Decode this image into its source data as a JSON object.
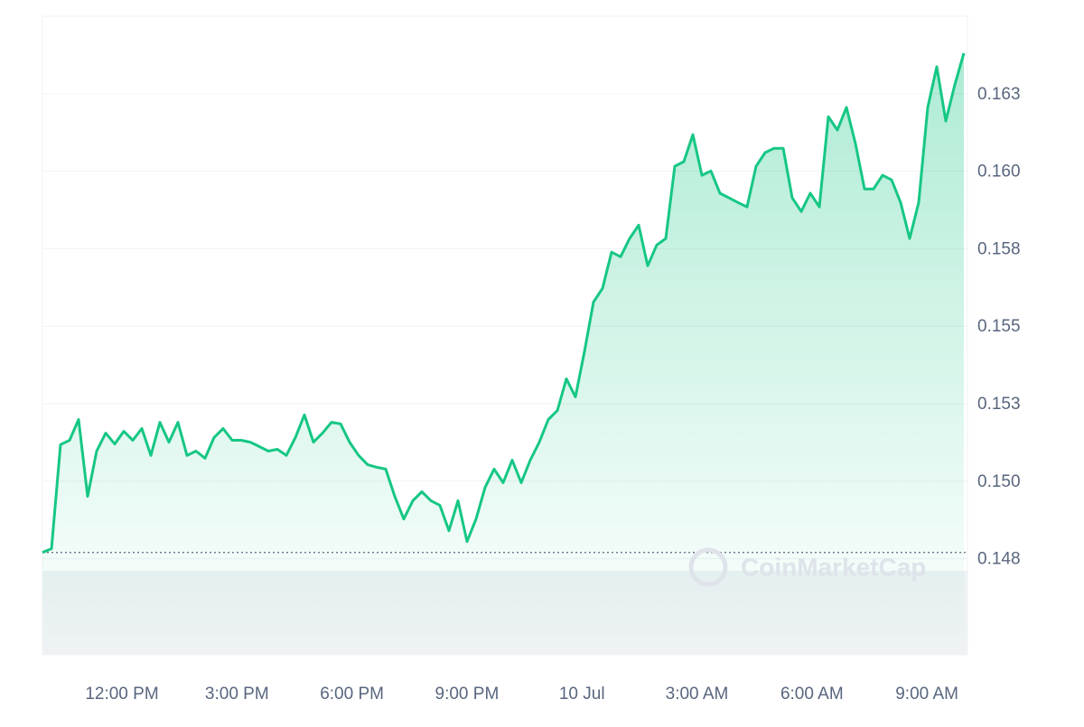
{
  "chart_data": {
    "type": "area",
    "watermark": "CoinMarketCap",
    "color": "#16c784",
    "values": [
      0.1477,
      0.14782,
      0.15118,
      0.15132,
      0.15199,
      0.14951,
      0.15097,
      0.15155,
      0.1512,
      0.15161,
      0.15132,
      0.1517,
      0.15083,
      0.1519,
      0.15126,
      0.1519,
      0.15083,
      0.15097,
      0.15074,
      0.15141,
      0.1517,
      0.15132,
      0.15132,
      0.15126,
      0.15112,
      0.15097,
      0.15103,
      0.15083,
      0.15141,
      0.15214,
      0.15126,
      0.15155,
      0.1519,
      0.15185,
      0.15126,
      0.15083,
      0.15053,
      0.15045,
      0.15039,
      0.14951,
      0.14878,
      0.14937,
      0.14966,
      0.14937,
      0.14922,
      0.1484,
      0.14937,
      0.14805,
      0.14878,
      0.1498,
      0.15039,
      0.14995,
      0.15068,
      0.14995,
      0.15068,
      0.15126,
      0.15199,
      0.15228,
      0.1533,
      0.15272,
      0.15418,
      0.15578,
      0.15622,
      0.15739,
      0.15724,
      0.15783,
      0.15826,
      0.15695,
      0.15762,
      0.15783,
      0.16016,
      0.16031,
      0.16118,
      0.15987,
      0.16001,
      0.15929,
      0.15914,
      0.15899,
      0.15885,
      0.16016,
      0.1606,
      0.16074,
      0.16074,
      0.15914,
      0.1587,
      0.15929,
      0.15885,
      0.16176,
      0.16133,
      0.16206,
      0.16089,
      0.15943,
      0.15943,
      0.15987,
      0.15972,
      0.15899,
      0.15783,
      0.15899,
      0.16206,
      0.16337,
      0.16162,
      0.16279,
      0.16381
    ],
    "xlim": [
      0,
      102
    ],
    "xticks": [
      {
        "value": 8.8,
        "label": "12:00 PM"
      },
      {
        "value": 21.53,
        "label": "3:00 PM"
      },
      {
        "value": 34.26,
        "label": "6:00 PM"
      },
      {
        "value": 46.99,
        "label": "9:00 PM"
      },
      {
        "value": 59.72,
        "label": "10 Jul"
      },
      {
        "value": 72.45,
        "label": "3:00 AM"
      },
      {
        "value": 85.18,
        "label": "6:00 AM"
      },
      {
        "value": 97.91,
        "label": "9:00 AM"
      }
    ],
    "ylim": [
      0.1444,
      0.165
    ],
    "yticks": [
      {
        "value": 0.1475,
        "label": "0.148"
      },
      {
        "value": 0.15,
        "label": "0.150"
      },
      {
        "value": 0.1525,
        "label": "0.153"
      },
      0.155,
      {
        "value": 0.1575,
        "label": "0.158"
      },
      {
        "value": 0.16,
        "label": "0.160"
      },
      {
        "value": 0.1625,
        "label": "0.163"
      }
    ],
    "grid": true
  }
}
